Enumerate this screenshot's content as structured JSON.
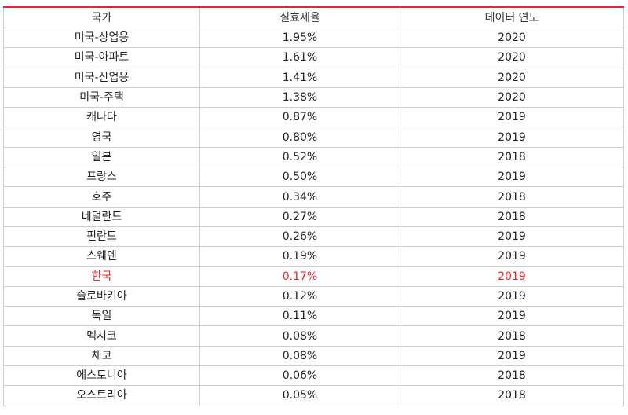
{
  "table": {
    "headers": [
      "국가",
      "실효세율",
      "데이터 연도"
    ],
    "highlight_color": "#e8262b",
    "rows": [
      {
        "country": "미국-상업용",
        "rate": "1.95%",
        "year": "2020",
        "highlight": false
      },
      {
        "country": "미국-아파트",
        "rate": "1.61%",
        "year": "2020",
        "highlight": false
      },
      {
        "country": "미국-산업용",
        "rate": "1.41%",
        "year": "2020",
        "highlight": false
      },
      {
        "country": "미국-주택",
        "rate": "1.38%",
        "year": "2020",
        "highlight": false
      },
      {
        "country": "캐나다",
        "rate": "0.87%",
        "year": "2019",
        "highlight": false
      },
      {
        "country": "영국",
        "rate": "0.80%",
        "year": "2019",
        "highlight": false
      },
      {
        "country": "일본",
        "rate": "0.52%",
        "year": "2018",
        "highlight": false
      },
      {
        "country": "프랑스",
        "rate": "0.50%",
        "year": "2019",
        "highlight": false
      },
      {
        "country": "호주",
        "rate": "0.34%",
        "year": "2018",
        "highlight": false
      },
      {
        "country": "네덜란드",
        "rate": "0.27%",
        "year": "2018",
        "highlight": false
      },
      {
        "country": "핀란드",
        "rate": "0.26%",
        "year": "2019",
        "highlight": false
      },
      {
        "country": "스웨덴",
        "rate": "0.19%",
        "year": "2019",
        "highlight": false
      },
      {
        "country": "한국",
        "rate": "0.17%",
        "year": "2019",
        "highlight": true
      },
      {
        "country": "슬로바키아",
        "rate": "0.12%",
        "year": "2019",
        "highlight": false
      },
      {
        "country": "독일",
        "rate": "0.11%",
        "year": "2019",
        "highlight": false
      },
      {
        "country": "멕시코",
        "rate": "0.08%",
        "year": "2018",
        "highlight": false
      },
      {
        "country": "체코",
        "rate": "0.08%",
        "year": "2019",
        "highlight": false
      },
      {
        "country": "에스토니아",
        "rate": "0.06%",
        "year": "2018",
        "highlight": false
      },
      {
        "country": "오스트리아",
        "rate": "0.05%",
        "year": "2018",
        "highlight": false
      }
    ]
  }
}
